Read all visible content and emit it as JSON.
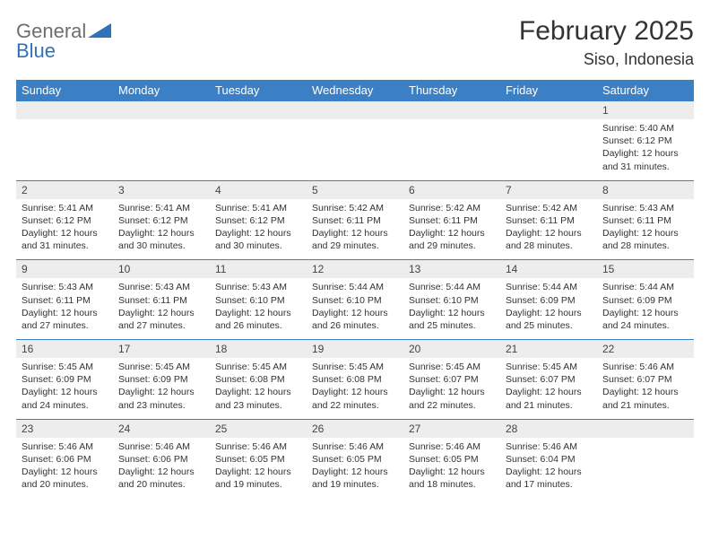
{
  "brand": {
    "general": "General",
    "blue": "Blue"
  },
  "title": {
    "month": "February 2025",
    "location": "Siso, Indonesia"
  },
  "colors": {
    "header_bg": "#3b7fc4",
    "strip_bg": "#ededed",
    "logo_gray": "#6e6e6e",
    "logo_blue": "#2f72b8"
  },
  "dayheads": [
    "Sunday",
    "Monday",
    "Tuesday",
    "Wednesday",
    "Thursday",
    "Friday",
    "Saturday"
  ],
  "labels": {
    "sunrise": "Sunrise:",
    "sunset": "Sunset:",
    "daylight": "Daylight:"
  },
  "weeks": [
    {
      "days": [
        {
          "n": "",
          "sunrise": "",
          "sunset": "",
          "daylight1": "",
          "daylight2": ""
        },
        {
          "n": "",
          "sunrise": "",
          "sunset": "",
          "daylight1": "",
          "daylight2": ""
        },
        {
          "n": "",
          "sunrise": "",
          "sunset": "",
          "daylight1": "",
          "daylight2": ""
        },
        {
          "n": "",
          "sunrise": "",
          "sunset": "",
          "daylight1": "",
          "daylight2": ""
        },
        {
          "n": "",
          "sunrise": "",
          "sunset": "",
          "daylight1": "",
          "daylight2": ""
        },
        {
          "n": "",
          "sunrise": "",
          "sunset": "",
          "daylight1": "",
          "daylight2": ""
        },
        {
          "n": "1",
          "sunrise": "5:40 AM",
          "sunset": "6:12 PM",
          "daylight1": "12 hours",
          "daylight2": "and 31 minutes."
        }
      ]
    },
    {
      "days": [
        {
          "n": "2",
          "sunrise": "5:41 AM",
          "sunset": "6:12 PM",
          "daylight1": "12 hours",
          "daylight2": "and 31 minutes."
        },
        {
          "n": "3",
          "sunrise": "5:41 AM",
          "sunset": "6:12 PM",
          "daylight1": "12 hours",
          "daylight2": "and 30 minutes."
        },
        {
          "n": "4",
          "sunrise": "5:41 AM",
          "sunset": "6:12 PM",
          "daylight1": "12 hours",
          "daylight2": "and 30 minutes."
        },
        {
          "n": "5",
          "sunrise": "5:42 AM",
          "sunset": "6:11 PM",
          "daylight1": "12 hours",
          "daylight2": "and 29 minutes."
        },
        {
          "n": "6",
          "sunrise": "5:42 AM",
          "sunset": "6:11 PM",
          "daylight1": "12 hours",
          "daylight2": "and 29 minutes."
        },
        {
          "n": "7",
          "sunrise": "5:42 AM",
          "sunset": "6:11 PM",
          "daylight1": "12 hours",
          "daylight2": "and 28 minutes."
        },
        {
          "n": "8",
          "sunrise": "5:43 AM",
          "sunset": "6:11 PM",
          "daylight1": "12 hours",
          "daylight2": "and 28 minutes."
        }
      ]
    },
    {
      "days": [
        {
          "n": "9",
          "sunrise": "5:43 AM",
          "sunset": "6:11 PM",
          "daylight1": "12 hours",
          "daylight2": "and 27 minutes."
        },
        {
          "n": "10",
          "sunrise": "5:43 AM",
          "sunset": "6:11 PM",
          "daylight1": "12 hours",
          "daylight2": "and 27 minutes."
        },
        {
          "n": "11",
          "sunrise": "5:43 AM",
          "sunset": "6:10 PM",
          "daylight1": "12 hours",
          "daylight2": "and 26 minutes."
        },
        {
          "n": "12",
          "sunrise": "5:44 AM",
          "sunset": "6:10 PM",
          "daylight1": "12 hours",
          "daylight2": "and 26 minutes."
        },
        {
          "n": "13",
          "sunrise": "5:44 AM",
          "sunset": "6:10 PM",
          "daylight1": "12 hours",
          "daylight2": "and 25 minutes."
        },
        {
          "n": "14",
          "sunrise": "5:44 AM",
          "sunset": "6:09 PM",
          "daylight1": "12 hours",
          "daylight2": "and 25 minutes."
        },
        {
          "n": "15",
          "sunrise": "5:44 AM",
          "sunset": "6:09 PM",
          "daylight1": "12 hours",
          "daylight2": "and 24 minutes."
        }
      ]
    },
    {
      "days": [
        {
          "n": "16",
          "sunrise": "5:45 AM",
          "sunset": "6:09 PM",
          "daylight1": "12 hours",
          "daylight2": "and 24 minutes."
        },
        {
          "n": "17",
          "sunrise": "5:45 AM",
          "sunset": "6:09 PM",
          "daylight1": "12 hours",
          "daylight2": "and 23 minutes."
        },
        {
          "n": "18",
          "sunrise": "5:45 AM",
          "sunset": "6:08 PM",
          "daylight1": "12 hours",
          "daylight2": "and 23 minutes."
        },
        {
          "n": "19",
          "sunrise": "5:45 AM",
          "sunset": "6:08 PM",
          "daylight1": "12 hours",
          "daylight2": "and 22 minutes."
        },
        {
          "n": "20",
          "sunrise": "5:45 AM",
          "sunset": "6:07 PM",
          "daylight1": "12 hours",
          "daylight2": "and 22 minutes."
        },
        {
          "n": "21",
          "sunrise": "5:45 AM",
          "sunset": "6:07 PM",
          "daylight1": "12 hours",
          "daylight2": "and 21 minutes."
        },
        {
          "n": "22",
          "sunrise": "5:46 AM",
          "sunset": "6:07 PM",
          "daylight1": "12 hours",
          "daylight2": "and 21 minutes."
        }
      ]
    },
    {
      "days": [
        {
          "n": "23",
          "sunrise": "5:46 AM",
          "sunset": "6:06 PM",
          "daylight1": "12 hours",
          "daylight2": "and 20 minutes."
        },
        {
          "n": "24",
          "sunrise": "5:46 AM",
          "sunset": "6:06 PM",
          "daylight1": "12 hours",
          "daylight2": "and 20 minutes."
        },
        {
          "n": "25",
          "sunrise": "5:46 AM",
          "sunset": "6:05 PM",
          "daylight1": "12 hours",
          "daylight2": "and 19 minutes."
        },
        {
          "n": "26",
          "sunrise": "5:46 AM",
          "sunset": "6:05 PM",
          "daylight1": "12 hours",
          "daylight2": "and 19 minutes."
        },
        {
          "n": "27",
          "sunrise": "5:46 AM",
          "sunset": "6:05 PM",
          "daylight1": "12 hours",
          "daylight2": "and 18 minutes."
        },
        {
          "n": "28",
          "sunrise": "5:46 AM",
          "sunset": "6:04 PM",
          "daylight1": "12 hours",
          "daylight2": "and 17 minutes."
        },
        {
          "n": "",
          "sunrise": "",
          "sunset": "",
          "daylight1": "",
          "daylight2": ""
        }
      ]
    }
  ]
}
